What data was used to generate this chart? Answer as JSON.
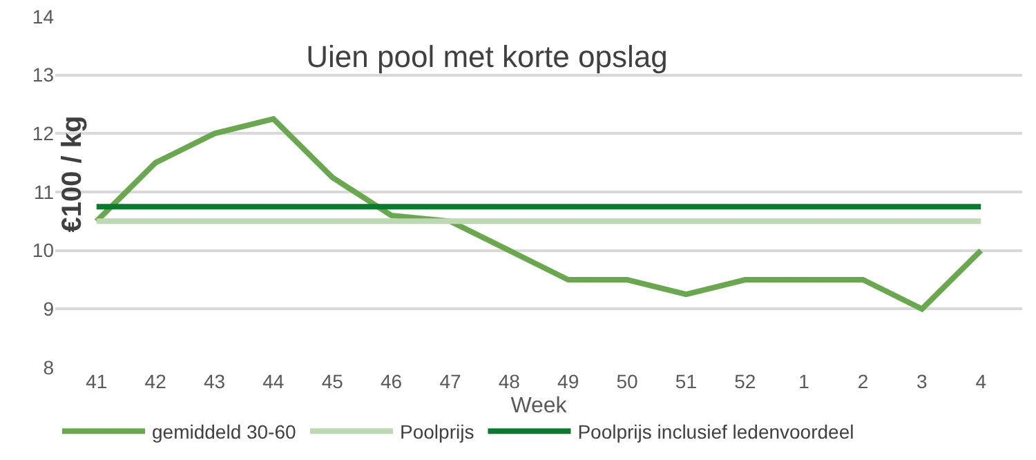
{
  "chart_data": {
    "type": "line",
    "title": "Uien pool met korte opslag",
    "xlabel": "Week",
    "ylabel": "€100 / kg",
    "categories": [
      "41",
      "42",
      "43",
      "44",
      "45",
      "46",
      "47",
      "48",
      "49",
      "50",
      "51",
      "52",
      "1",
      "2",
      "3",
      "4"
    ],
    "series": [
      {
        "name": "gemiddeld 30-60",
        "color": "#6aa84f",
        "values": [
          10.5,
          11.5,
          12.0,
          12.25,
          11.25,
          10.6,
          10.5,
          10.0,
          9.5,
          9.5,
          9.25,
          9.5,
          9.5,
          9.5,
          9.0,
          10.0
        ]
      },
      {
        "name": "Poolprijs",
        "color": "#bdd9b1",
        "values": [
          10.5,
          10.5,
          10.5,
          10.5,
          10.5,
          10.5,
          10.5,
          10.5,
          10.5,
          10.5,
          10.5,
          10.5,
          10.5,
          10.5,
          10.5,
          10.5
        ]
      },
      {
        "name": "Poolprijs inclusief ledenvoordeel",
        "color": "#0a7a2e",
        "values": [
          10.75,
          10.75,
          10.75,
          10.75,
          10.75,
          10.75,
          10.75,
          10.75,
          10.75,
          10.75,
          10.75,
          10.75,
          10.75,
          10.75,
          10.75,
          10.75
        ]
      }
    ],
    "ylim": [
      8,
      14
    ],
    "yticks": [
      8,
      9,
      10,
      11,
      12,
      13,
      14
    ],
    "grid": "y",
    "legend": "bottom",
    "marker": "none",
    "line_style": "solid"
  }
}
